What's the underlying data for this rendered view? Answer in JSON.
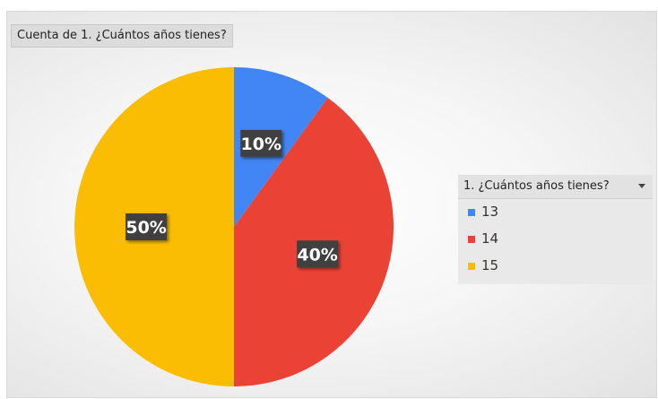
{
  "chart_data": {
    "type": "pie",
    "title": "Cuenta de 1. ¿Cuántos años tienes?",
    "legend_title": "1. ¿Cuántos años tienes?",
    "legend_position": "right",
    "categories": [
      "13",
      "14",
      "15"
    ],
    "values": [
      10,
      40,
      50
    ],
    "data_labels": [
      "10%",
      "40%",
      "50%"
    ],
    "colors": [
      "#4285f4",
      "#ea4335",
      "#fbbc04"
    ]
  }
}
